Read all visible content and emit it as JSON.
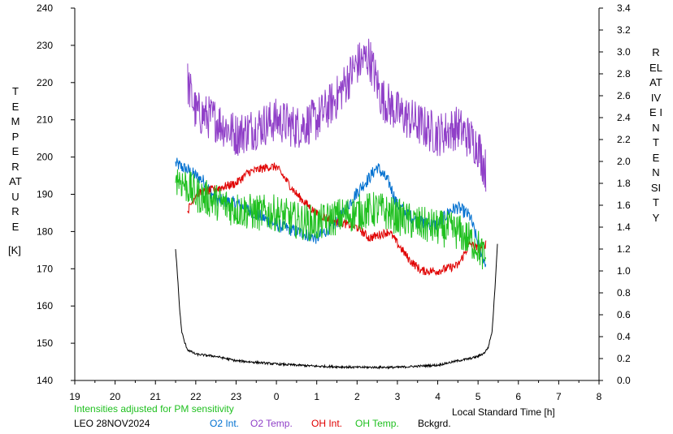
{
  "chart_data": {
    "type": "line",
    "left_axis": {
      "label": "TEMPERATURE",
      "unit": "[K]",
      "range": [
        140,
        240
      ],
      "ticks": [
        140,
        150,
        160,
        170,
        180,
        190,
        200,
        210,
        220,
        230,
        240
      ]
    },
    "right_axis": {
      "label": "RELATIVE INTENSITY",
      "range": [
        0.0,
        3.4
      ],
      "ticks": [
        "0.0",
        "0.2",
        "0.4",
        "0.6",
        "0.8",
        "1.0",
        "1.2",
        "1.4",
        "1.6",
        "1.8",
        "2.0",
        "2.2",
        "2.4",
        "2.6",
        "2.8",
        "3.0",
        "3.2",
        "3.4"
      ]
    },
    "x_axis": {
      "label": "Local Standard Time [h]",
      "range": [
        19,
        32
      ],
      "tick_values": [
        19,
        20,
        21,
        22,
        23,
        24,
        25,
        26,
        27,
        28,
        29,
        30,
        31,
        32
      ],
      "tick_labels": [
        "19",
        "20",
        "21",
        "22",
        "23",
        "0",
        "1",
        "2",
        "3",
        "4",
        "5",
        "6",
        "7",
        "8"
      ]
    },
    "series": [
      {
        "name": "O2 Int.",
        "axis": "right",
        "color": "#0070d0",
        "x": [
          21.5,
          21.8,
          22.2,
          22.5,
          23.0,
          23.5,
          24.0,
          24.5,
          25.0,
          25.5,
          26.0,
          26.3,
          26.5,
          26.8,
          27.0,
          27.5,
          28.0,
          28.3,
          28.5,
          28.8,
          29.0,
          29.2
        ],
        "y": [
          1.98,
          1.92,
          1.82,
          1.65,
          1.62,
          1.52,
          1.42,
          1.36,
          1.3,
          1.45,
          1.72,
          1.85,
          1.95,
          1.8,
          1.6,
          1.45,
          1.42,
          1.55,
          1.58,
          1.5,
          1.25,
          1.05
        ],
        "noise": 0.06
      },
      {
        "name": "O2 Temp.",
        "axis": "left",
        "color": "#9040c8",
        "x": [
          21.8,
          22.0,
          22.5,
          23.0,
          23.5,
          24.0,
          24.5,
          25.0,
          25.5,
          26.0,
          26.3,
          26.6,
          27.0,
          27.5,
          28.0,
          28.5,
          29.0,
          29.2
        ],
        "y": [
          220,
          212,
          210,
          206,
          208,
          210,
          208,
          210,
          216,
          225,
          227,
          216,
          212,
          209,
          206,
          208,
          203,
          196
        ],
        "noise": 6
      },
      {
        "name": "OH Int.",
        "axis": "right",
        "color": "#e00000",
        "x": [
          21.8,
          22.0,
          22.5,
          23.0,
          23.3,
          23.8,
          24.0,
          24.5,
          25.0,
          25.5,
          26.0,
          26.3,
          26.8,
          27.0,
          27.3,
          27.6,
          28.0,
          28.5,
          28.8,
          29.0,
          29.2
        ],
        "y": [
          1.55,
          1.7,
          1.75,
          1.8,
          1.9,
          1.95,
          1.95,
          1.7,
          1.52,
          1.45,
          1.4,
          1.3,
          1.36,
          1.25,
          1.1,
          1.0,
          1.0,
          1.05,
          1.25,
          1.2,
          1.25
        ],
        "noise": 0.04
      },
      {
        "name": "OH Temp.",
        "axis": "left",
        "color": "#20c020",
        "x": [
          21.5,
          21.8,
          22.0,
          22.5,
          23.0,
          23.5,
          24.0,
          24.5,
          25.0,
          25.5,
          26.0,
          26.5,
          27.0,
          27.5,
          28.0,
          28.5,
          29.0,
          29.2
        ],
        "y": [
          195,
          192,
          190,
          188,
          186,
          185,
          185,
          183,
          182,
          184,
          185,
          186,
          184,
          182,
          181,
          180,
          176,
          172
        ],
        "noise": 5
      },
      {
        "name": "Bckgrd.",
        "axis": "right",
        "color": "#000000",
        "x": [
          21.5,
          21.55,
          21.6,
          21.65,
          21.72,
          21.8,
          22.0,
          22.5,
          23.0,
          24.0,
          25.0,
          26.0,
          27.0,
          28.0,
          28.5,
          28.8,
          29.0,
          29.15,
          29.25,
          29.35,
          29.42,
          29.48
        ],
        "y": [
          1.2,
          0.95,
          0.65,
          0.45,
          0.35,
          0.28,
          0.24,
          0.22,
          0.18,
          0.15,
          0.13,
          0.12,
          0.12,
          0.14,
          0.18,
          0.2,
          0.22,
          0.25,
          0.3,
          0.45,
          0.85,
          1.25
        ],
        "noise": 0.01
      }
    ],
    "legend": [
      "O2 Int.",
      "O2 Temp.",
      "OH Int.",
      "OH Temp.",
      "Bckgrd."
    ],
    "annotation": "Intensities adjusted for PM sensitivity",
    "station_date": "LEO 28NOV2024"
  },
  "colors": {
    "o2_int": "#0070d0",
    "o2_temp": "#9040c8",
    "oh_int": "#e00000",
    "oh_temp": "#20c020",
    "background": "#000000",
    "annotation": "#20c020"
  },
  "labels": {
    "left_title": "TEMPERATURE",
    "left_unit": "[K]",
    "right_title": "RELATIVE INTENSITY",
    "xlabel": "Local Standard Time [h]",
    "annotation": "Intensities adjusted for PM sensitivity",
    "station_date": "LEO 28NOV2024",
    "legend_o2_int": "O2 Int.",
    "legend_o2_temp": "O2 Temp.",
    "legend_oh_int": "OH Int.",
    "legend_oh_temp": "OH Temp.",
    "legend_bckgrd": "Bckgrd."
  }
}
